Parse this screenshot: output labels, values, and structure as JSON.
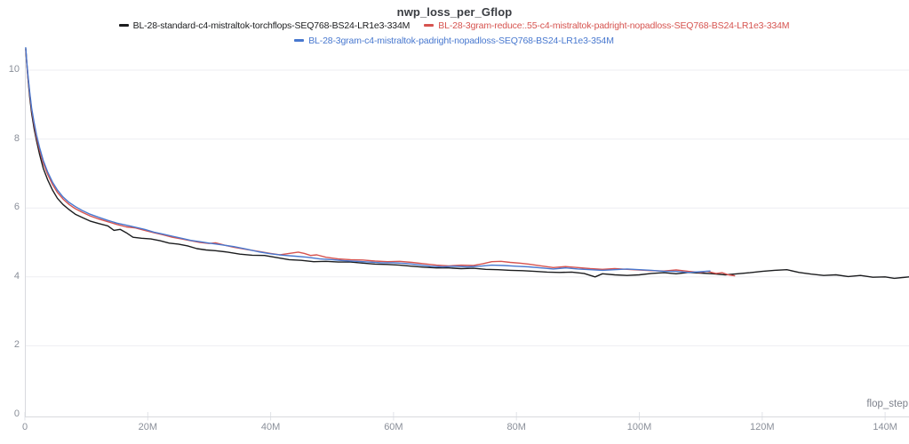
{
  "chart_data": {
    "type": "line",
    "title": "nwp_loss_per_Gflop",
    "xlabel": "flop_step",
    "ylabel": "",
    "xlim_millions": [
      0,
      143.9
    ],
    "ylim": [
      0,
      10.7
    ],
    "grid": "horizontal-only",
    "legend_position": "top-center",
    "x_ticks": [
      {
        "value": 0,
        "label": "0"
      },
      {
        "value": 20,
        "label": "20M"
      },
      {
        "value": 40,
        "label": "40M"
      },
      {
        "value": 60,
        "label": "60M"
      },
      {
        "value": 80,
        "label": "80M"
      },
      {
        "value": 100,
        "label": "100M"
      },
      {
        "value": 120,
        "label": "120M"
      },
      {
        "value": 140,
        "label": "140M"
      }
    ],
    "y_ticks": [
      {
        "value": 0,
        "label": "0"
      },
      {
        "value": 2,
        "label": "2"
      },
      {
        "value": 4,
        "label": "4"
      },
      {
        "value": 6,
        "label": "6"
      },
      {
        "value": 8,
        "label": "8"
      },
      {
        "value": 10,
        "label": "10"
      }
    ],
    "series": [
      {
        "id": "standard",
        "name": "BL-28-standard-c4-mistraltok-torchflops-SEQ768-BS24-LR1e3-334M",
        "color": "#1b1c1e",
        "points": [
          [
            0.15,
            10.62
          ],
          [
            0.3,
            10.2
          ],
          [
            0.5,
            9.75
          ],
          [
            0.8,
            9.2
          ],
          [
            1.1,
            8.75
          ],
          [
            1.5,
            8.3
          ],
          [
            1.9,
            7.95
          ],
          [
            2.4,
            7.55
          ],
          [
            3.0,
            7.15
          ],
          [
            3.7,
            6.82
          ],
          [
            4.5,
            6.52
          ],
          [
            5.3,
            6.28
          ],
          [
            6.2,
            6.1
          ],
          [
            7.2,
            5.95
          ],
          [
            8.2,
            5.82
          ],
          [
            9.4,
            5.72
          ],
          [
            10.6,
            5.62
          ],
          [
            12,
            5.55
          ],
          [
            13.5,
            5.48
          ],
          [
            14.5,
            5.35
          ],
          [
            15.5,
            5.38
          ],
          [
            16.5,
            5.28
          ],
          [
            17.6,
            5.15
          ],
          [
            19,
            5.12
          ],
          [
            20.5,
            5.1
          ],
          [
            22,
            5.05
          ],
          [
            23.5,
            4.98
          ],
          [
            25,
            4.95
          ],
          [
            26.5,
            4.9
          ],
          [
            28,
            4.82
          ],
          [
            29.5,
            4.78
          ],
          [
            31,
            4.76
          ],
          [
            33,
            4.72
          ],
          [
            35,
            4.66
          ],
          [
            37,
            4.63
          ],
          [
            39,
            4.62
          ],
          [
            41,
            4.56
          ],
          [
            43,
            4.5
          ],
          [
            45,
            4.48
          ],
          [
            47,
            4.44
          ],
          [
            49,
            4.45
          ],
          [
            51,
            4.43
          ],
          [
            53,
            4.43
          ],
          [
            55,
            4.4
          ],
          [
            57,
            4.37
          ],
          [
            59,
            4.36
          ],
          [
            61,
            4.34
          ],
          [
            63,
            4.31
          ],
          [
            65,
            4.28
          ],
          [
            67,
            4.26
          ],
          [
            69,
            4.26
          ],
          [
            71,
            4.24
          ],
          [
            73,
            4.25
          ],
          [
            75,
            4.22
          ],
          [
            77,
            4.21
          ],
          [
            79,
            4.19
          ],
          [
            81,
            4.18
          ],
          [
            83,
            4.16
          ],
          [
            85,
            4.14
          ],
          [
            87,
            4.13
          ],
          [
            89,
            4.14
          ],
          [
            91,
            4.1
          ],
          [
            92.8,
            4.0
          ],
          [
            94,
            4.09
          ],
          [
            96,
            4.06
          ],
          [
            98,
            4.04
          ],
          [
            100,
            4.06
          ],
          [
            102,
            4.1
          ],
          [
            104,
            4.12
          ],
          [
            106,
            4.09
          ],
          [
            108,
            4.13
          ],
          [
            110,
            4.11
          ],
          [
            112,
            4.09
          ],
          [
            114,
            4.06
          ],
          [
            116,
            4.09
          ],
          [
            118,
            4.12
          ],
          [
            120,
            4.16
          ],
          [
            122,
            4.19
          ],
          [
            124,
            4.21
          ],
          [
            126,
            4.13
          ],
          [
            128,
            4.08
          ],
          [
            130,
            4.04
          ],
          [
            132,
            4.06
          ],
          [
            134,
            4.01
          ],
          [
            136,
            4.04
          ],
          [
            138,
            3.99
          ],
          [
            140,
            4.0
          ],
          [
            141.5,
            3.96
          ],
          [
            143.9,
            4.0
          ]
        ]
      },
      {
        "id": "3gram-reduce55",
        "name": "BL-28-3gram-reduce:.55-c4-mistraltok-padright-nopadloss-SEQ768-BS24-LR1e3-334M",
        "color": "#d6534f",
        "points": [
          [
            0.15,
            10.6
          ],
          [
            0.3,
            10.22
          ],
          [
            0.5,
            9.8
          ],
          [
            0.8,
            9.3
          ],
          [
            1.1,
            8.85
          ],
          [
            1.5,
            8.42
          ],
          [
            1.9,
            8.05
          ],
          [
            2.4,
            7.68
          ],
          [
            3.0,
            7.3
          ],
          [
            3.7,
            6.98
          ],
          [
            4.5,
            6.68
          ],
          [
            5.3,
            6.45
          ],
          [
            6.2,
            6.26
          ],
          [
            7.2,
            6.1
          ],
          [
            8.2,
            5.98
          ],
          [
            9.4,
            5.87
          ],
          [
            10.6,
            5.77
          ],
          [
            12,
            5.68
          ],
          [
            13.5,
            5.6
          ],
          [
            15,
            5.52
          ],
          [
            16.5,
            5.45
          ],
          [
            18,
            5.42
          ],
          [
            19.5,
            5.35
          ],
          [
            21,
            5.28
          ],
          [
            22.5,
            5.22
          ],
          [
            24,
            5.15
          ],
          [
            25.5,
            5.1
          ],
          [
            27,
            5.05
          ],
          [
            28.5,
            5.0
          ],
          [
            30,
            4.97
          ],
          [
            31,
            4.99
          ],
          [
            32.5,
            4.92
          ],
          [
            34,
            4.86
          ],
          [
            36,
            4.8
          ],
          [
            38,
            4.74
          ],
          [
            40,
            4.68
          ],
          [
            41.5,
            4.64
          ],
          [
            43,
            4.68
          ],
          [
            44.5,
            4.72
          ],
          [
            45.5,
            4.68
          ],
          [
            46.5,
            4.62
          ],
          [
            47.5,
            4.64
          ],
          [
            49,
            4.57
          ],
          [
            51,
            4.52
          ],
          [
            53,
            4.5
          ],
          [
            55,
            4.49
          ],
          [
            57,
            4.46
          ],
          [
            59,
            4.44
          ],
          [
            61,
            4.45
          ],
          [
            63,
            4.42
          ],
          [
            65,
            4.38
          ],
          [
            67,
            4.34
          ],
          [
            69,
            4.32
          ],
          [
            71,
            4.34
          ],
          [
            73,
            4.33
          ],
          [
            74.5,
            4.38
          ],
          [
            76,
            4.44
          ],
          [
            77.5,
            4.45
          ],
          [
            79,
            4.42
          ],
          [
            80.5,
            4.4
          ],
          [
            82,
            4.37
          ],
          [
            84,
            4.32
          ],
          [
            86,
            4.27
          ],
          [
            88,
            4.3
          ],
          [
            90,
            4.27
          ],
          [
            92,
            4.24
          ],
          [
            94,
            4.22
          ],
          [
            96,
            4.24
          ],
          [
            98,
            4.22
          ],
          [
            100,
            4.2
          ],
          [
            102,
            4.18
          ],
          [
            104,
            4.17
          ],
          [
            106,
            4.2
          ],
          [
            108,
            4.16
          ],
          [
            110,
            4.13
          ],
          [
            111,
            4.16
          ],
          [
            112.5,
            4.1
          ],
          [
            113.5,
            4.12
          ],
          [
            114.5,
            4.06
          ],
          [
            115.5,
            4.03
          ]
        ]
      },
      {
        "id": "3gram",
        "name": "BL-28-3gram-c4-mistraltok-padright-nopadloss-SEQ768-BS24-LR1e3-354M",
        "color": "#4878cf",
        "points": [
          [
            0.15,
            10.65
          ],
          [
            0.3,
            10.25
          ],
          [
            0.5,
            9.85
          ],
          [
            0.8,
            9.35
          ],
          [
            1.1,
            8.9
          ],
          [
            1.5,
            8.48
          ],
          [
            1.9,
            8.12
          ],
          [
            2.4,
            7.75
          ],
          [
            3.0,
            7.38
          ],
          [
            3.7,
            7.05
          ],
          [
            4.5,
            6.75
          ],
          [
            5.3,
            6.52
          ],
          [
            6.2,
            6.32
          ],
          [
            7.2,
            6.16
          ],
          [
            8.2,
            6.04
          ],
          [
            9.4,
            5.92
          ],
          [
            10.6,
            5.82
          ],
          [
            12,
            5.73
          ],
          [
            13.5,
            5.64
          ],
          [
            15,
            5.56
          ],
          [
            16.5,
            5.5
          ],
          [
            18,
            5.44
          ],
          [
            19.5,
            5.38
          ],
          [
            21,
            5.3
          ],
          [
            22.5,
            5.24
          ],
          [
            24,
            5.18
          ],
          [
            25.5,
            5.12
          ],
          [
            27,
            5.06
          ],
          [
            28.5,
            5.02
          ],
          [
            30,
            4.98
          ],
          [
            32,
            4.93
          ],
          [
            34,
            4.88
          ],
          [
            36,
            4.81
          ],
          [
            38,
            4.73
          ],
          [
            40,
            4.67
          ],
          [
            42,
            4.63
          ],
          [
            44,
            4.6
          ],
          [
            46,
            4.57
          ],
          [
            48,
            4.52
          ],
          [
            50,
            4.5
          ],
          [
            52,
            4.47
          ],
          [
            54,
            4.45
          ],
          [
            56,
            4.43
          ],
          [
            58,
            4.41
          ],
          [
            60,
            4.41
          ],
          [
            62,
            4.39
          ],
          [
            64,
            4.35
          ],
          [
            66,
            4.31
          ],
          [
            68,
            4.29
          ],
          [
            70,
            4.31
          ],
          [
            72,
            4.29
          ],
          [
            74,
            4.31
          ],
          [
            76,
            4.34
          ],
          [
            78,
            4.33
          ],
          [
            80,
            4.31
          ],
          [
            82,
            4.29
          ],
          [
            84,
            4.26
          ],
          [
            86,
            4.23
          ],
          [
            88,
            4.26
          ],
          [
            90,
            4.23
          ],
          [
            92,
            4.21
          ],
          [
            94,
            4.19
          ],
          [
            96,
            4.21
          ],
          [
            98,
            4.23
          ],
          [
            100,
            4.21
          ],
          [
            102,
            4.19
          ],
          [
            104,
            4.16
          ],
          [
            106,
            4.16
          ],
          [
            108,
            4.13
          ],
          [
            110,
            4.15
          ],
          [
            111.5,
            4.17
          ]
        ]
      }
    ],
    "style": {
      "grid_color": "#edeef2",
      "axis_color": "#d8dade",
      "tick_label_color": "#8a8f99",
      "title_color": "#3a3d42"
    }
  }
}
